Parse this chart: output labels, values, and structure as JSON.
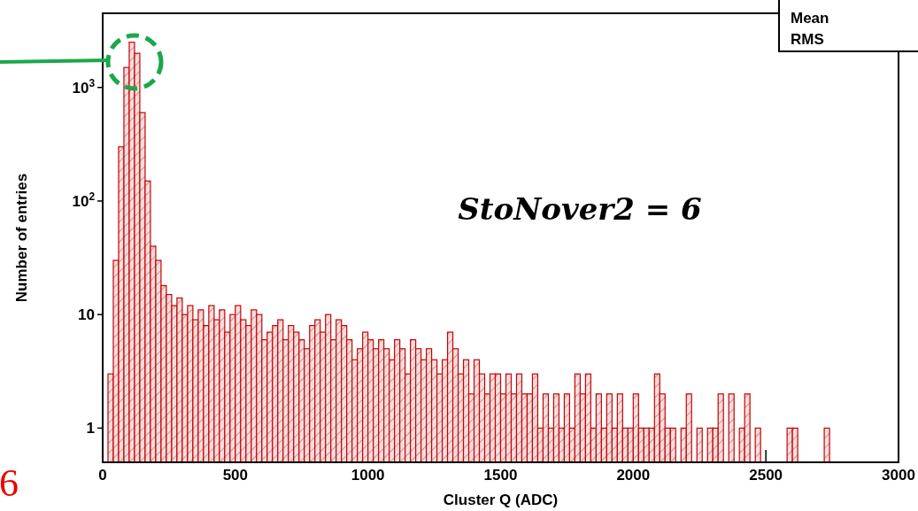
{
  "chart_data": {
    "type": "histogram",
    "xlabel": "Cluster Q  (ADC)",
    "ylabel": "Number of entries",
    "color": "#cc0000",
    "annotations": [
      "StoNover2 = 6",
      "Mean",
      "RMS",
      "6"
    ],
    "bins": [
      0,
      20,
      40,
      60,
      80,
      100,
      120,
      140,
      160,
      180,
      200,
      220,
      240,
      260,
      280,
      300,
      320,
      340,
      360,
      380,
      400,
      420,
      440,
      460,
      480,
      500,
      520,
      540,
      560,
      580,
      600,
      620,
      640,
      660,
      680,
      700,
      720,
      740,
      760,
      780,
      800,
      820,
      840,
      860,
      880,
      900,
      920,
      940,
      960,
      980,
      1000,
      1020,
      1040,
      1060,
      1080,
      1100,
      1120,
      1140,
      1160,
      1180,
      1200,
      1220,
      1240,
      1260,
      1280,
      1300,
      1320,
      1340,
      1360,
      1380,
      1400,
      1420,
      1440,
      1460,
      1480,
      1500,
      1520,
      1540,
      1560,
      1580,
      1600,
      1620,
      1640,
      1660,
      1680,
      1700,
      1720,
      1740,
      1760,
      1780,
      1800,
      1820,
      1840,
      1860,
      1880,
      1900,
      1920,
      1940,
      1960,
      1980,
      2000,
      2020,
      2040,
      2060,
      2080,
      2100,
      2120,
      2140,
      2160,
      2180,
      2200,
      2220,
      2240,
      2260,
      2280,
      2300,
      2320,
      2340,
      2360,
      2380,
      2400,
      2420,
      2440,
      2460,
      2480,
      2500,
      2520,
      2540,
      2560,
      2580,
      2600,
      2620,
      2640,
      2660,
      2680,
      2700,
      2720,
      2740
    ],
    "values": [
      null,
      3,
      30,
      300,
      1500,
      2500,
      2000,
      600,
      150,
      40,
      30,
      18,
      15,
      12,
      14,
      10,
      12,
      9,
      11,
      8,
      12,
      9,
      11,
      7,
      10,
      12,
      9,
      8,
      11,
      10,
      6,
      7,
      8,
      9,
      6,
      8,
      7,
      6,
      5,
      8,
      9,
      7,
      10,
      6,
      9,
      8,
      6,
      4,
      5,
      7,
      6,
      5,
      6,
      5,
      4,
      6,
      5,
      3,
      6,
      5,
      4,
      5,
      4,
      3,
      4,
      7,
      5,
      3,
      4,
      2,
      4,
      3,
      2,
      3,
      3,
      2,
      3,
      2,
      3,
      2,
      2,
      3,
      1,
      2,
      1,
      2,
      1,
      2,
      1,
      3,
      2,
      3,
      1,
      2,
      1,
      2,
      1,
      2,
      1,
      1,
      2,
      1,
      1,
      1,
      3,
      2,
      1,
      1,
      null,
      1,
      2,
      null,
      1,
      null,
      1,
      1,
      2,
      null,
      2,
      null,
      1,
      2,
      null,
      1,
      null,
      null,
      null,
      null,
      null,
      1,
      1,
      null,
      null,
      null,
      null,
      null,
      1
    ],
    "log": "y",
    "xlim": [
      0,
      3000
    ],
    "ylim": [
      0.5,
      4500
    ],
    "xticks": [
      0,
      500,
      1000,
      1500,
      2000,
      2500,
      3000
    ],
    "yticks": [
      1,
      10,
      {
        "value": 100,
        "label": "10$^{2}$"
      },
      {
        "value": 1000,
        "label": "10$^{3}$"
      }
    ],
    "grid": false
  }
}
